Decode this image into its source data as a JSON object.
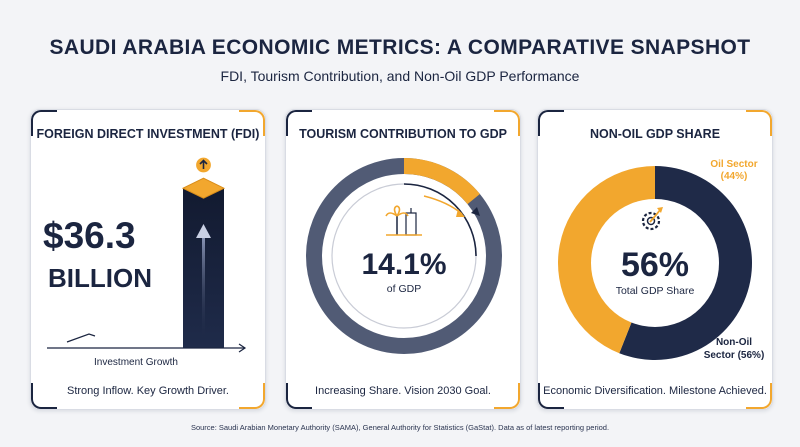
{
  "header": {
    "title": "SAUDI ARABIA ECONOMIC METRICS: A COMPARATIVE SNAPSHOT",
    "subtitle": "FDI, Tourism Contribution, and Non-Oil GDP Performance"
  },
  "colors": {
    "navy": "#1b2540",
    "gold": "#f2a72e",
    "ring_gray": "#515b75"
  },
  "fdi": {
    "title": "FOREIGN DIRECT INVESTMENT (FDI)",
    "value": "$36.3",
    "unit": "BILLION",
    "axis_label": "Investment Growth",
    "footer": "Strong Inflow. Key Growth Driver.",
    "icon": "arrow-up-icon"
  },
  "tourism": {
    "title": "TOURISM CONTRIBUTION TO GDP",
    "value": "14.1%",
    "value_label": "of GDP",
    "footer": "Increasing Share. Vision 2030 Goal.",
    "icon": "palm-tree-icon"
  },
  "nonoil": {
    "title": "NON-OIL GDP SHARE",
    "value": "56%",
    "value_label": "Total GDP Share",
    "oil_label_line1": "Oil Sector",
    "oil_label_line2": "(44%)",
    "nonoil_label_line1": "Non-Oil",
    "nonoil_label_line2": "Sector (56%)",
    "footer": "Economic Diversification. Milestone Achieved.",
    "icon": "gear-growth-icon"
  },
  "source": "Source: Saudi Arabian Monetary Authority (SAMA), General Authority for Statistics (GaStat). Data as of latest reporting period.",
  "chart_data": [
    {
      "type": "bar",
      "title": "FOREIGN DIRECT INVESTMENT (FDI)",
      "categories": [
        "FDI"
      ],
      "values": [
        36.3
      ],
      "unit": "BILLION",
      "xlabel": "Investment Growth"
    },
    {
      "type": "pie",
      "title": "TOURISM CONTRIBUTION TO GDP",
      "slices": [
        {
          "name": "Tourism",
          "value": 14.1
        },
        {
          "name": "",
          "value": 85.9
        }
      ],
      "unit": "% of GDP"
    },
    {
      "type": "pie",
      "title": "NON-OIL GDP SHARE",
      "slices": [
        {
          "name": "Oil Sector",
          "value": 44
        },
        {
          "name": "Non-Oil Sector",
          "value": 56
        }
      ],
      "unit": "%"
    }
  ]
}
